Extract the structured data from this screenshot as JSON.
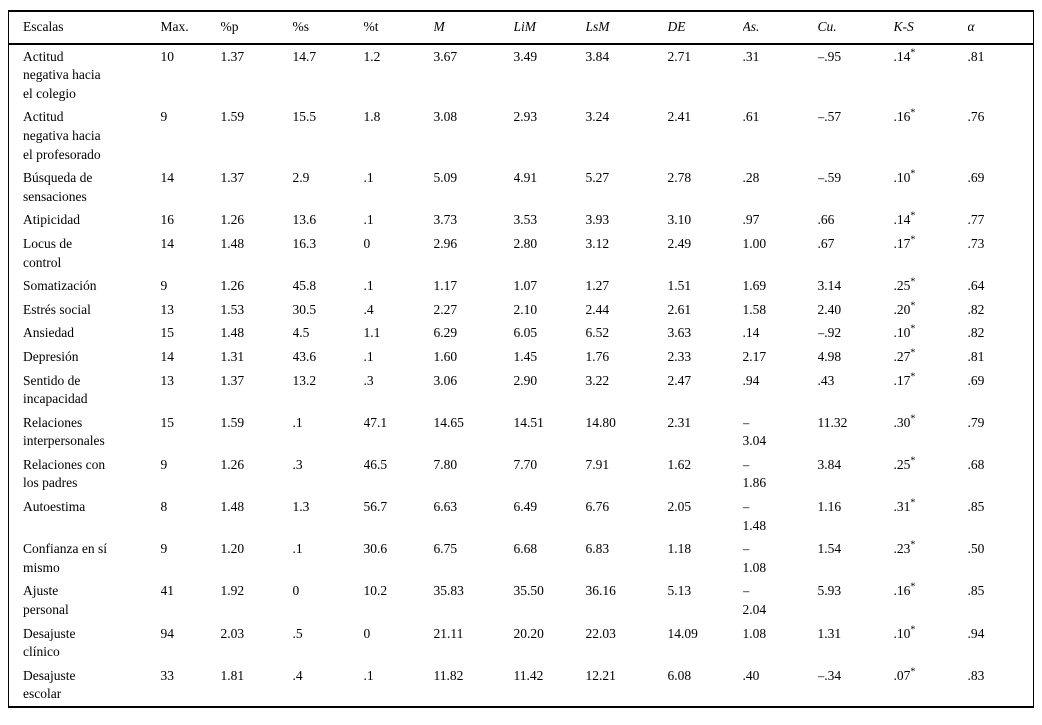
{
  "table": {
    "columns": [
      {
        "key": "name",
        "label": "Escalas",
        "italic": false
      },
      {
        "key": "max",
        "label": "Max.",
        "italic": false
      },
      {
        "key": "pp",
        "label": "%p",
        "italic": false
      },
      {
        "key": "ps",
        "label": "%s",
        "italic": false
      },
      {
        "key": "pt",
        "label": "%t",
        "italic": false
      },
      {
        "key": "m",
        "label": "M",
        "italic": true
      },
      {
        "key": "lim",
        "label": "LiM",
        "italic": true
      },
      {
        "key": "lsm",
        "label": "LsM",
        "italic": true
      },
      {
        "key": "de",
        "label": "DE",
        "italic": true
      },
      {
        "key": "as",
        "label": "As.",
        "italic": true
      },
      {
        "key": "cu",
        "label": "Cu.",
        "italic": true
      },
      {
        "key": "ks",
        "label": "K-S",
        "italic": true
      },
      {
        "key": "alpha",
        "label": "α",
        "italic": true
      }
    ],
    "ks_superscript": "*",
    "rows": [
      {
        "name": "Actitud\nnegativa hacia\nel colegio",
        "max": "10",
        "pp": "1.37",
        "ps": "14.7",
        "pt": "1.2",
        "m": "3.67",
        "lim": "3.49",
        "lsm": "3.84",
        "de": "2.71",
        "as": ".31",
        "cu": "–.95",
        "ks": ".14",
        "alpha": ".81"
      },
      {
        "name": "Actitud\nnegativa hacia\nel profesorado",
        "max": "9",
        "pp": "1.59",
        "ps": "15.5",
        "pt": "1.8",
        "m": "3.08",
        "lim": "2.93",
        "lsm": "3.24",
        "de": "2.41",
        "as": ".61",
        "cu": "–.57",
        "ks": ".16",
        "alpha": ".76"
      },
      {
        "name": "Búsqueda de\nsensaciones",
        "max": "14",
        "pp": "1.37",
        "ps": "2.9",
        "pt": ".1",
        "m": "5.09",
        "lim": "4.91",
        "lsm": "5.27",
        "de": "2.78",
        "as": ".28",
        "cu": "–.59",
        "ks": ".10",
        "alpha": ".69"
      },
      {
        "name": "Atipicidad",
        "max": "16",
        "pp": "1.26",
        "ps": "13.6",
        "pt": ".1",
        "m": "3.73",
        "lim": "3.53",
        "lsm": "3.93",
        "de": "3.10",
        "as": ".97",
        "cu": ".66",
        "ks": ".14",
        "alpha": ".77"
      },
      {
        "name": "Locus de\ncontrol",
        "max": "14",
        "pp": "1.48",
        "ps": "16.3",
        "pt": "0",
        "m": "2.96",
        "lim": "2.80",
        "lsm": "3.12",
        "de": "2.49",
        "as": "1.00",
        "cu": ".67",
        "ks": ".17",
        "alpha": ".73"
      },
      {
        "name": "Somatización",
        "max": "9",
        "pp": "1.26",
        "ps": "45.8",
        "pt": ".1",
        "m": "1.17",
        "lim": "1.07",
        "lsm": "1.27",
        "de": "1.51",
        "as": "1.69",
        "cu": "3.14",
        "ks": ".25",
        "alpha": ".64"
      },
      {
        "name": "Estrés social",
        "max": "13",
        "pp": "1.53",
        "ps": "30.5",
        "pt": ".4",
        "m": "2.27",
        "lim": "2.10",
        "lsm": "2.44",
        "de": "2.61",
        "as": "1.58",
        "cu": "2.40",
        "ks": ".20",
        "alpha": ".82"
      },
      {
        "name": "Ansiedad",
        "max": "15",
        "pp": "1.48",
        "ps": "4.5",
        "pt": "1.1",
        "m": "6.29",
        "lim": "6.05",
        "lsm": "6.52",
        "de": "3.63",
        "as": ".14",
        "cu": "–.92",
        "ks": ".10",
        "alpha": ".82"
      },
      {
        "name": "Depresión",
        "max": "14",
        "pp": "1.31",
        "ps": "43.6",
        "pt": ".1",
        "m": "1.60",
        "lim": "1.45",
        "lsm": "1.76",
        "de": "2.33",
        "as": "2.17",
        "cu": "4.98",
        "ks": ".27",
        "alpha": ".81"
      },
      {
        "name": "Sentido de\nincapacidad",
        "max": "13",
        "pp": "1.37",
        "ps": "13.2",
        "pt": ".3",
        "m": "3.06",
        "lim": "2.90",
        "lsm": "3.22",
        "de": "2.47",
        "as": ".94",
        "cu": ".43",
        "ks": ".17",
        "alpha": ".69"
      },
      {
        "name": "Relaciones\ninterpersonales",
        "max": "15",
        "pp": "1.59",
        "ps": ".1",
        "pt": "47.1",
        "m": "14.65",
        "lim": "14.51",
        "lsm": "14.80",
        "de": "2.31",
        "as": "–\n3.04",
        "cu": "11.32",
        "ks": ".30",
        "alpha": ".79"
      },
      {
        "name": "Relaciones con\nlos padres",
        "max": "9",
        "pp": "1.26",
        "ps": ".3",
        "pt": "46.5",
        "m": "7.80",
        "lim": "7.70",
        "lsm": "7.91",
        "de": "1.62",
        "as": "–\n1.86",
        "cu": "3.84",
        "ks": ".25",
        "alpha": ".68"
      },
      {
        "name": "Autoestima",
        "max": "8",
        "pp": "1.48",
        "ps": "1.3",
        "pt": "56.7",
        "m": "6.63",
        "lim": "6.49",
        "lsm": "6.76",
        "de": "2.05",
        "as": "–\n1.48",
        "cu": "1.16",
        "ks": ".31",
        "alpha": ".85"
      },
      {
        "name": "Confianza en sí\nmismo",
        "max": "9",
        "pp": "1.20",
        "ps": ".1",
        "pt": "30.6",
        "m": "6.75",
        "lim": "6.68",
        "lsm": "6.83",
        "de": "1.18",
        "as": "–\n1.08",
        "cu": "1.54",
        "ks": ".23",
        "alpha": ".50"
      },
      {
        "name": "Ajuste\npersonal",
        "max": "41",
        "pp": "1.92",
        "ps": "0",
        "pt": "10.2",
        "m": "35.83",
        "lim": "35.50",
        "lsm": "36.16",
        "de": "5.13",
        "as": "–\n2.04",
        "cu": "5.93",
        "ks": ".16",
        "alpha": ".85"
      },
      {
        "name": "Desajuste\nclínico",
        "max": "94",
        "pp": "2.03",
        "ps": ".5",
        "pt": "0",
        "m": "21.11",
        "lim": "20.20",
        "lsm": "22.03",
        "de": "14.09",
        "as": "1.08",
        "cu": "1.31",
        "ks": ".10",
        "alpha": ".94"
      },
      {
        "name": "Desajuste\nescolar",
        "max": "33",
        "pp": "1.81",
        "ps": ".4",
        "pt": ".1",
        "m": "11.82",
        "lim": "11.42",
        "lsm": "12.21",
        "de": "6.08",
        "as": ".40",
        "cu": "–.34",
        "ks": ".07",
        "alpha": ".83"
      }
    ]
  }
}
